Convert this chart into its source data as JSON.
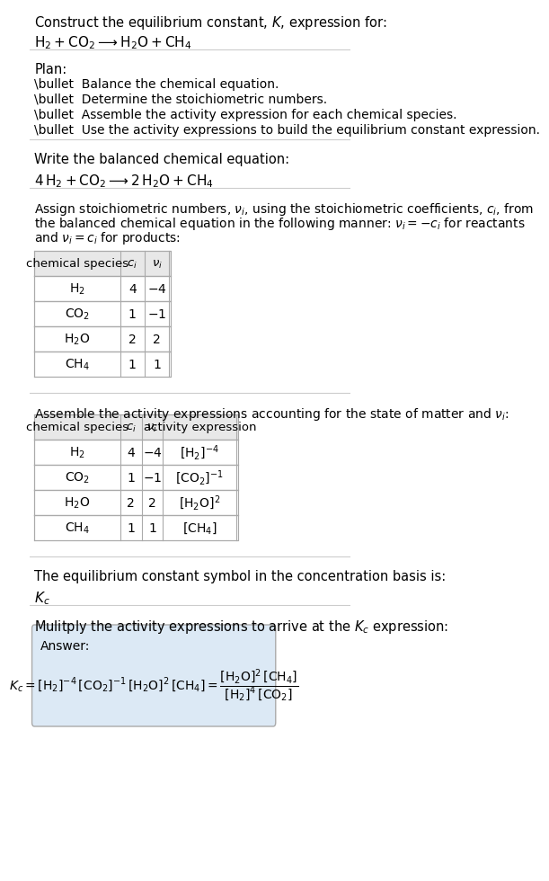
{
  "bg_color": "#ffffff",
  "text_color": "#000000",
  "title_line1": "Construct the equilibrium constant, $K$, expression for:",
  "title_line2": "$\\mathrm{H_2 + CO_2 \\longrightarrow H_2O + CH_4}$",
  "plan_header": "Plan:",
  "plan_bullets": [
    "\\bullet  Balance the chemical equation.",
    "\\bullet  Determine the stoichiometric numbers.",
    "\\bullet  Assemble the activity expression for each chemical species.",
    "\\bullet  Use the activity expressions to build the equilibrium constant expression."
  ],
  "balanced_header": "Write the balanced chemical equation:",
  "balanced_eq": "$\\mathrm{4\\,H_2 + CO_2 \\longrightarrow 2\\,H_2O + CH_4}$",
  "assign_header": "Assign stoichiometric numbers, $\\nu_i$, using the stoichiometric coefficients, $c_i$, from\nthe balanced chemical equation in the following manner: $\\nu_i = -c_i$ for reactants\nand $\\nu_i = c_i$ for products:",
  "table1_headers": [
    "chemical species",
    "$c_i$",
    "$\\nu_i$"
  ],
  "table1_rows": [
    [
      "$\\mathrm{H_2}$",
      "4",
      "$-4$"
    ],
    [
      "$\\mathrm{CO_2}$",
      "1",
      "$-1$"
    ],
    [
      "$\\mathrm{H_2O}$",
      "2",
      "2"
    ],
    [
      "$\\mathrm{CH_4}$",
      "1",
      "1"
    ]
  ],
  "assemble_header": "Assemble the activity expressions accounting for the state of matter and $\\nu_i$:",
  "table2_headers": [
    "chemical species",
    "$c_i$",
    "$\\nu_i$",
    "activity expression"
  ],
  "table2_rows": [
    [
      "$\\mathrm{H_2}$",
      "4",
      "$-4$",
      "$[\\mathrm{H_2}]^{-4}$"
    ],
    [
      "$\\mathrm{CO_2}$",
      "1",
      "$-1$",
      "$[\\mathrm{CO_2}]^{-1}$"
    ],
    [
      "$\\mathrm{H_2O}$",
      "2",
      "2",
      "$[\\mathrm{H_2O}]^{2}$"
    ],
    [
      "$\\mathrm{CH_4}$",
      "1",
      "1",
      "$[\\mathrm{CH_4}]$"
    ]
  ],
  "kc_text": "The equilibrium constant symbol in the concentration basis is:",
  "kc_symbol": "$K_c$",
  "multiply_header": "Mulitply the activity expressions to arrive at the $K_c$ expression:",
  "answer_box_color": "#dce9f5",
  "answer_label": "Answer:",
  "answer_eq": "$K_c = [\\mathrm{H_2}]^{-4}\\,[\\mathrm{CO_2}]^{-1}\\,[\\mathrm{H_2O}]^{2}\\,[\\mathrm{CH_4}] = \\dfrac{[\\mathrm{H_2O}]^{2}\\,[\\mathrm{CH_4}]}{[\\mathrm{H_2}]^{4}\\,[\\mathrm{CO_2}]}$",
  "table_header_color": "#e8e8e8",
  "table_border_color": "#aaaaaa",
  "divider_color": "#cccccc"
}
